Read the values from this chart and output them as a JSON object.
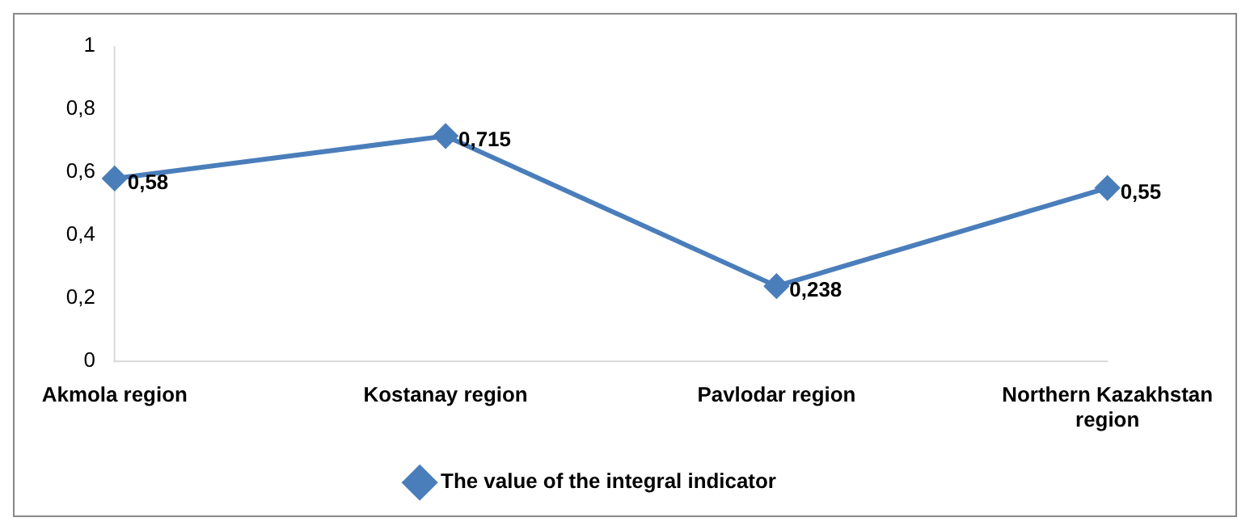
{
  "chart_data": {
    "type": "line",
    "categories": [
      "Akmola region",
      "Kostanay region",
      "Pavlodar region",
      "Northern Kazakhstan region"
    ],
    "series": [
      {
        "name": "The value of the integral indicator",
        "color": "#4a7ebb",
        "values": [
          0.58,
          0.715,
          0.238,
          0.55
        ],
        "value_labels": [
          "0,58",
          "0,715",
          "0,238",
          "0,55"
        ]
      }
    ],
    "ylim": [
      0,
      1
    ],
    "yticks": [
      0,
      {
        "value": 0.2,
        "label": "0,2"
      },
      {
        "value": 0.4,
        "label": "0,4"
      },
      {
        "value": 0.6,
        "label": "0,6"
      },
      {
        "value": 0.8,
        "label": "0,8"
      },
      1
    ],
    "grid": false,
    "legend": "bottom",
    "marker": "diamond",
    "line_style": "solid"
  }
}
